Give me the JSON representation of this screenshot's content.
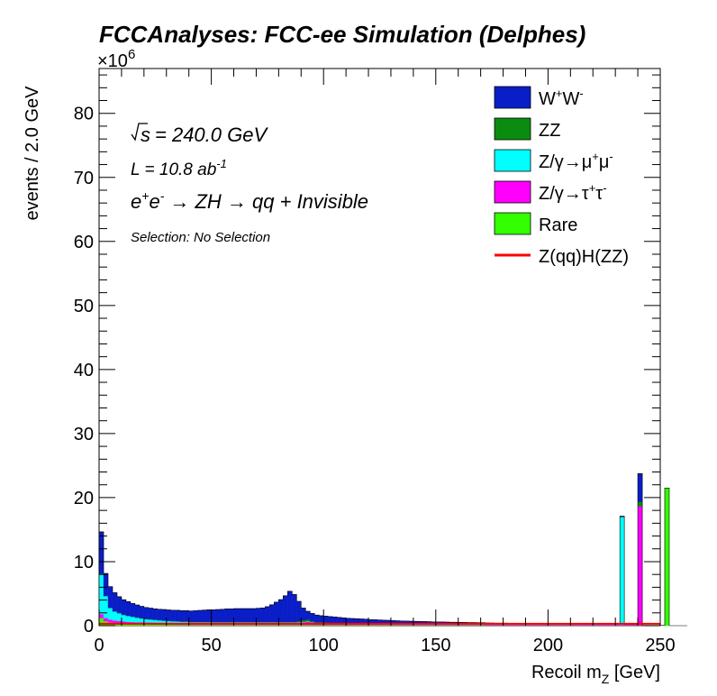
{
  "header": {
    "title": "FCCAnalyses: FCC-ee Simulation (Delphes)",
    "multiplier_base": "×10",
    "multiplier_exp": "6"
  },
  "annotations": {
    "sqrt_s": "= 240.0 GeV",
    "lumi_prefix": "L = 10.8 ab",
    "lumi_exp": "-1",
    "process_lhs": "e",
    "process_rhs": "→ ZH → qq + Invisible",
    "selection": "Selection: No Selection"
  },
  "legend": [
    {
      "main": "W",
      "sup1": "+",
      "main2": "W",
      "sup2": "-",
      "color": "#0a1ec8",
      "style": "fill"
    },
    {
      "main": "ZZ",
      "color": "#0b8c10",
      "style": "fill"
    },
    {
      "main": "Z/γ→μ",
      "sup1": "+",
      "main2": "μ",
      "sup2": "-",
      "color": "#00ffff",
      "style": "fill"
    },
    {
      "main": "Z/γ→τ",
      "sup1": "+",
      "main2": "τ",
      "sup2": "-",
      "color": "#ff00ff",
      "style": "fill"
    },
    {
      "main": "Rare",
      "color": "#33ff00",
      "style": "fill"
    },
    {
      "main": "Z(qq)H(ZZ)",
      "color": "#ff0000",
      "style": "line"
    }
  ],
  "chart_data": {
    "type": "histogram-stacked",
    "title": "FCCAnalyses: FCC-ee Simulation (Delphes)",
    "xlabel_main": "Recoil m",
    "xlabel_sub": "Z",
    "xlabel_unit": " [GeV]",
    "ylabel": "events / 2.0 GeV",
    "y_multiplier": 1000000,
    "xlim": [
      0,
      250
    ],
    "ylim": [
      0,
      87
    ],
    "bin_width": 2,
    "xticks": [
      0,
      50,
      100,
      150,
      200,
      250
    ],
    "yticks": [
      0,
      10,
      20,
      30,
      40,
      50,
      60,
      70,
      80
    ],
    "legend_position": "top-right",
    "grid": false,
    "bin_edges_sample": "0-2, 2-4, ..., 248-250",
    "series": [
      {
        "name": "Rare",
        "color": "#33ff00",
        "values": [
          1.2,
          0.7,
          0.5,
          0.4,
          0.35,
          0.3,
          0.25,
          0.22,
          0.2,
          0.2,
          0.18,
          0.17,
          0.16,
          0.15,
          0.15,
          0.14,
          0.14,
          0.13,
          0.13,
          0.13,
          0.12,
          0.12,
          0.12,
          0.12,
          0.12,
          0.12,
          0.12,
          0.12,
          0.12,
          0.12,
          0.12,
          0.12,
          0.12,
          0.12,
          0.12,
          0.12,
          0.12,
          0.12,
          0.12,
          0.12,
          0.12,
          0.12,
          0.12,
          0.12,
          0.12,
          0.12,
          0.12,
          0.1,
          0.1,
          0.1,
          0.1,
          0.1,
          0.1,
          0.1,
          0.1,
          0.1,
          0.1,
          0.1,
          0.1,
          0.1,
          0.1,
          0.1,
          0.1,
          0.1,
          0.1,
          0.1,
          0.08,
          0.08,
          0.08,
          0.08,
          0.08,
          0.08,
          0.08,
          0.08,
          0.08,
          0.08,
          0.08,
          0.08,
          0.08,
          0.08,
          0.08,
          0.08,
          0.08,
          0.08,
          0.08,
          0.08,
          0.06,
          0.06,
          0.06,
          0.06,
          0.06,
          0.06,
          0.06,
          0.06,
          0.06,
          0.06,
          0.06,
          0.06,
          0.06,
          0.06,
          0.06,
          0.06,
          0.06,
          0.06,
          0.06,
          0.06,
          0.05,
          0.05,
          0.05,
          0.05,
          0.05,
          0.05,
          0.05,
          0.05,
          0.05,
          0.05,
          0.05,
          0.05,
          0.05,
          0.05,
          0.05,
          0.05,
          0.05,
          0.05,
          0.05,
          0.05,
          21.5,
          0,
          0,
          0,
          0
        ]
      },
      {
        "name": "Z/γ→τ+τ-",
        "color": "#ff00ff",
        "values": [
          0.6,
          0.5,
          0.45,
          0.4,
          0.38,
          0.36,
          0.35,
          0.34,
          0.33,
          0.32,
          0.32,
          0.32,
          0.32,
          0.32,
          0.32,
          0.32,
          0.32,
          0.32,
          0.32,
          0.32,
          0.32,
          0.32,
          0.32,
          0.32,
          0.32,
          0.32,
          0.32,
          0.32,
          0.32,
          0.32,
          0.32,
          0.32,
          0.32,
          0.32,
          0.32,
          0.32,
          0.32,
          0.32,
          0.32,
          0.32,
          0.32,
          0.32,
          0.32,
          0.32,
          0.35,
          0.4,
          0.5,
          0.4,
          0.3,
          0.3,
          0.28,
          0.26,
          0.25,
          0.24,
          0.22,
          0.2,
          0.2,
          0.18,
          0.17,
          0.16,
          0.15,
          0.14,
          0.13,
          0.12,
          0.12,
          0.11,
          0.1,
          0.1,
          0.1,
          0.1,
          0.1,
          0.1,
          0.1,
          0.1,
          0.1,
          0.1,
          0.1,
          0.1,
          0.1,
          0.1,
          0.1,
          0.1,
          0.1,
          0.1,
          0.1,
          0.1,
          0.1,
          0.1,
          0.1,
          0.1,
          0.1,
          0.1,
          0.1,
          0.1,
          0.1,
          0.1,
          0.1,
          0.1,
          0.1,
          0.1,
          0.1,
          0.1,
          0.1,
          0.1,
          0.1,
          0.1,
          0.1,
          0.1,
          0.1,
          0.1,
          0.1,
          0.1,
          0.1,
          0.1,
          0.1,
          0.1,
          0.1,
          0.1,
          0.1,
          0.1,
          18.6,
          0,
          0,
          0,
          0
        ]
      },
      {
        "name": "Z/γ→μ+μ-",
        "color": "#00ffff",
        "values": [
          6.3,
          3.4,
          1.8,
          1.4,
          1.2,
          1.0,
          0.9,
          0.8,
          0.7,
          0.6,
          0.5,
          0.45,
          0.4,
          0.35,
          0.3,
          0.25,
          0.2,
          0.2,
          0.15,
          0.15,
          0.1,
          0.1,
          0.1,
          0.1,
          0.1,
          0.08,
          0.08,
          0.08,
          0.08,
          0.08,
          0.08,
          0.08,
          0.08,
          0.08,
          0.08,
          0.08,
          0.08,
          0.08,
          0.08,
          0.08,
          0.08,
          0.08,
          0.08,
          0.08,
          0.08,
          0.08,
          0.08,
          0.06,
          0.06,
          0.06,
          0.06,
          0.06,
          0.06,
          0.06,
          0.06,
          0.06,
          0.05,
          0.05,
          0.05,
          0.05,
          0.05,
          0.05,
          0.05,
          0.05,
          0.05,
          0.05,
          0.05,
          0.05,
          0.05,
          0.05,
          0.05,
          0.05,
          0.05,
          0.05,
          0.05,
          0.05,
          0.05,
          0.05,
          0.05,
          0.05,
          0.05,
          0.05,
          0.05,
          0.05,
          0.05,
          0.05,
          0.05,
          0.05,
          0.05,
          0.05,
          0.05,
          0.05,
          0.05,
          0.05,
          0.05,
          0.05,
          0.05,
          0.05,
          0.05,
          0.05,
          0.05,
          0.05,
          0.05,
          0.05,
          0.05,
          0.05,
          0.05,
          0.05,
          0.05,
          0.05,
          0.05,
          0.05,
          0.05,
          0.05,
          0.05,
          0.05,
          16.8,
          0,
          0,
          0,
          0
        ]
      },
      {
        "name": "ZZ",
        "color": "#0b8c10",
        "values": [
          0.05,
          0.05,
          0.05,
          0.05,
          0.05,
          0.05,
          0.05,
          0.05,
          0.05,
          0.05,
          0.05,
          0.05,
          0.05,
          0.05,
          0.05,
          0.05,
          0.05,
          0.05,
          0.05,
          0.05,
          0.05,
          0.05,
          0.05,
          0.05,
          0.05,
          0.05,
          0.05,
          0.05,
          0.05,
          0.05,
          0.05,
          0.05,
          0.05,
          0.05,
          0.05,
          0.05,
          0.05,
          0.05,
          0.05,
          0.05,
          0.05,
          0.05,
          0.05,
          0.05,
          0.15,
          0.25,
          0.25,
          0.15,
          0.05,
          0.05,
          0.05,
          0.05,
          0.05,
          0.05,
          0.05,
          0.05,
          0.05,
          0.05,
          0.05,
          0.05,
          0.05,
          0.05,
          0.05,
          0.05,
          0.05,
          0.05,
          0.05,
          0.05,
          0.05,
          0.05,
          0.05,
          0.05,
          0.05,
          0.05,
          0.05,
          0.05,
          0.05,
          0.05,
          0.05,
          0.05,
          0.05,
          0.05,
          0.05,
          0.05,
          0.05,
          0.05,
          0.05,
          0.05,
          0.05,
          0.05,
          0.05,
          0.05,
          0.05,
          0.05,
          0.05,
          0.05,
          0.05,
          0.05,
          0.05,
          0.05,
          0.05,
          0.05,
          0.05,
          0.05,
          0.05,
          0.05,
          0.05,
          0.05,
          0.05,
          0.05,
          0.05,
          0.05,
          0.05,
          0.05,
          0.05,
          0.05,
          0.05,
          0.05,
          0.05,
          0.05,
          0.7,
          0,
          0,
          0,
          0
        ]
      },
      {
        "name": "W+W-",
        "color": "#0a1ec8",
        "values": [
          6.5,
          3.5,
          3.3,
          2.9,
          2.55,
          2.35,
          2.2,
          2.05,
          1.95,
          1.85,
          1.8,
          1.75,
          1.7,
          1.7,
          1.7,
          1.7,
          1.7,
          1.7,
          1.7,
          1.7,
          1.7,
          1.75,
          1.8,
          1.85,
          1.9,
          1.9,
          1.95,
          2.0,
          2.05,
          2.05,
          2.1,
          2.1,
          2.1,
          2.1,
          2.1,
          2.15,
          2.2,
          2.4,
          2.7,
          3.1,
          3.5,
          4.1,
          4.8,
          4.3,
          3.1,
          1.9,
          1.3,
          1.2,
          1.15,
          1.05,
          1.0,
          0.95,
          0.9,
          0.85,
          0.8,
          0.75,
          0.72,
          0.7,
          0.68,
          0.65,
          0.6,
          0.58,
          0.56,
          0.54,
          0.52,
          0.5,
          0.48,
          0.46,
          0.44,
          0.42,
          0.4,
          0.38,
          0.36,
          0.34,
          0.32,
          0.3,
          0.3,
          0.28,
          0.26,
          0.25,
          0.24,
          0.22,
          0.2,
          0.2,
          0.18,
          0.18,
          0.16,
          0.16,
          0.14,
          0.14,
          0.14,
          0.12,
          0.12,
          0.12,
          0.1,
          0.1,
          0.1,
          0.1,
          0.1,
          0.1,
          0.1,
          0.1,
          0.1,
          0.1,
          0.1,
          0.1,
          0.1,
          0.1,
          0.1,
          0.1,
          0.1,
          0.1,
          0.1,
          0.1,
          0.1,
          0.1,
          0.1,
          0.1,
          0.1,
          0.1,
          4.4,
          0,
          0,
          0,
          0
        ]
      }
    ],
    "signal": {
      "name": "Z(qq)H(ZZ)",
      "color": "#ff0000",
      "values": [
        0.3,
        0.3,
        0.3,
        0.3,
        0.3,
        0.3,
        0.3,
        0.3,
        0.3,
        0.3,
        0.3,
        0.3,
        0.3,
        0.3,
        0.3,
        0.3,
        0.3,
        0.3,
        0.3,
        0.3,
        0.3,
        0.3,
        0.3,
        0.3,
        0.3,
        0.3,
        0.3,
        0.3,
        0.3,
        0.3,
        0.3,
        0.3,
        0.3,
        0.3,
        0.3,
        0.3,
        0.3,
        0.3,
        0.3,
        0.3,
        0.3,
        0.3,
        0.3,
        0.3,
        0.3,
        0.3,
        0.3,
        0.3,
        0.3,
        0.3,
        0.3,
        0.3,
        0.3,
        0.3,
        0.3,
        0.3,
        0.3,
        0.3,
        0.3,
        0.3,
        0.3,
        0.3,
        0.3,
        0.3,
        0.3,
        0.3,
        0.3,
        0.3,
        0.3,
        0.3,
        0.3,
        0.3,
        0.3,
        0.3,
        0.3,
        0.3,
        0.3,
        0.3,
        0.3,
        0.3,
        0.3,
        0.3,
        0.3,
        0.3,
        0.3,
        0.3,
        0.3,
        0.3,
        0.3,
        0.3,
        0.3,
        0.3,
        0.3,
        0.3,
        0.3,
        0.3,
        0.3,
        0.3,
        0.3,
        0.3,
        0.3,
        0.3,
        0.3,
        0.3,
        0.3,
        0.3,
        0.3,
        0.3,
        0.3,
        0.3,
        0.3,
        0.3,
        0.3,
        0.3,
        0.3,
        0.3,
        0.3,
        0.3,
        0.3,
        0.3,
        0.3,
        0.3,
        0.3,
        0.3,
        0.3
      ]
    }
  }
}
